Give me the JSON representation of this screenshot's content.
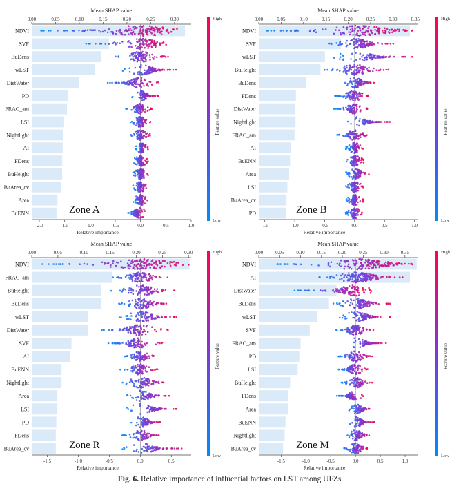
{
  "caption": {
    "label": "Fig. 6.",
    "text": "Relative importance of influential factors on LST among UFZs."
  },
  "chart_data": [
    {
      "type": "bar",
      "title": "Zone A",
      "top_axis_label": "Mean SHAP value",
      "bottom_axis_label": "Relative importance",
      "colorbar_label": "Feature value",
      "colorbar_high": "High",
      "colorbar_low": "Low",
      "top_ticks": [
        "0.00",
        "0.05",
        "0.10",
        "0.15",
        "0.20",
        "0.25",
        "0.30"
      ],
      "top_xlim": [
        0,
        0.335
      ],
      "bottom_ticks": [
        "-2.0",
        "-1.5",
        "-1.0",
        "-0.5",
        "0.0",
        "0.5",
        "1.0"
      ],
      "bottom_xlim": [
        -2.15,
        1.0
      ],
      "categories": [
        "NDVI",
        "SVF",
        "BuDens",
        "wLST",
        "DistWater",
        "PD",
        "FRAC_am",
        "LSI",
        "Nightlight",
        "AI",
        "FDens",
        "BuHeight",
        "BuArea_cv",
        "Area",
        "BuENN"
      ],
      "values": [
        0.322,
        0.162,
        0.145,
        0.133,
        0.1,
        0.076,
        0.074,
        0.068,
        0.066,
        0.065,
        0.064,
        0.064,
        0.062,
        0.054,
        0.052
      ],
      "beeswarm_range": [
        [
          -2.0,
          0.9
        ],
        [
          -1.1,
          0.6
        ],
        [
          -0.6,
          0.6
        ],
        [
          -0.4,
          0.75
        ],
        [
          -0.65,
          0.35
        ],
        [
          -0.2,
          0.35
        ],
        [
          -0.3,
          0.25
        ],
        [
          -0.2,
          0.2
        ],
        [
          -0.2,
          0.2
        ],
        [
          -0.1,
          0.15
        ],
        [
          -0.15,
          0.15
        ],
        [
          -0.15,
          0.15
        ],
        [
          -0.15,
          0.15
        ],
        [
          -0.15,
          0.15
        ],
        [
          -0.25,
          0.1
        ]
      ]
    },
    {
      "type": "bar",
      "title": "Zone B",
      "top_axis_label": "Mean SHAP value",
      "bottom_axis_label": "Relative importance",
      "colorbar_label": "Feature value",
      "colorbar_high": "High",
      "colorbar_low": "Low",
      "top_ticks": [
        "0.00",
        "0.05",
        "0.10",
        "0.15",
        "0.20",
        "0.25",
        "0.30",
        "0.35"
      ],
      "top_xlim": [
        0,
        0.355
      ],
      "bottom_ticks": [
        "-1.5",
        "-1.0",
        "-0.5",
        "0.0",
        "0.5",
        "1.0"
      ],
      "bottom_xlim": [
        -1.6,
        1.05
      ],
      "categories": [
        "NDVI",
        "SVF",
        "wLST",
        "BuHeight",
        "BuDens",
        "FDens",
        "DistWater",
        "Nightlight",
        "FRAC_am",
        "AI",
        "BuENN",
        "Area",
        "LSI",
        "BuArea_cv",
        "PD"
      ],
      "values": [
        0.338,
        0.184,
        0.148,
        0.138,
        0.105,
        0.083,
        0.082,
        0.082,
        0.08,
        0.071,
        0.07,
        0.068,
        0.064,
        0.062,
        0.061
      ],
      "beeswarm_range": [
        [
          -1.5,
          1.0
        ],
        [
          -0.45,
          0.65
        ],
        [
          -0.4,
          1.05
        ],
        [
          -0.55,
          0.6
        ],
        [
          -0.2,
          0.35
        ],
        [
          -0.35,
          0.3
        ],
        [
          -0.35,
          0.25
        ],
        [
          -0.15,
          0.65
        ],
        [
          -0.3,
          0.25
        ],
        [
          -0.15,
          0.15
        ],
        [
          -0.15,
          0.15
        ],
        [
          -0.15,
          0.25
        ],
        [
          -0.15,
          0.15
        ],
        [
          -0.15,
          0.15
        ],
        [
          -0.15,
          0.15
        ]
      ]
    },
    {
      "type": "bar",
      "title": "Zone R",
      "top_axis_label": "Mean SHAP value",
      "bottom_axis_label": "Relative importance",
      "colorbar_label": "Feature value",
      "colorbar_high": "High",
      "colorbar_low": "Low",
      "top_ticks": [
        "0.00",
        "0.05",
        "0.10",
        "0.15",
        "0.20",
        "0.25",
        "0.30"
      ],
      "top_xlim": [
        0,
        0.305
      ],
      "bottom_ticks": [
        "-1.5",
        "-1.0",
        "-0.5",
        "0.0",
        "0.5"
      ],
      "bottom_xlim": [
        -1.75,
        0.82
      ],
      "categories": [
        "NDVI",
        "FRAC_am",
        "BuHeight",
        "BuDens",
        "wLST",
        "DistWater",
        "SVF",
        "AI",
        "BuENN",
        "Nightlight",
        "Area",
        "LSI",
        "PD",
        "FDens",
        "BuArea_cv"
      ],
      "values": [
        0.302,
        0.154,
        0.133,
        0.132,
        0.108,
        0.107,
        0.076,
        0.074,
        0.057,
        0.057,
        0.049,
        0.049,
        0.047,
        0.046,
        0.046
      ],
      "beeswarm_range": [
        [
          -1.65,
          0.8
        ],
        [
          -0.45,
          0.45
        ],
        [
          -0.5,
          0.6
        ],
        [
          -0.35,
          0.5
        ],
        [
          -0.35,
          0.6
        ],
        [
          -0.65,
          0.45
        ],
        [
          -0.55,
          0.4
        ],
        [
          -0.3,
          0.3
        ],
        [
          -0.35,
          0.3
        ],
        [
          -0.35,
          0.5
        ],
        [
          -0.25,
          0.5
        ],
        [
          -0.25,
          0.65
        ],
        [
          -0.15,
          0.35
        ],
        [
          -0.3,
          0.35
        ],
        [
          -0.3,
          0.7
        ]
      ]
    },
    {
      "type": "bar",
      "title": "Zone M",
      "top_axis_label": "Mean SHAP value",
      "bottom_axis_label": "Relative importance",
      "colorbar_label": "Feature value",
      "colorbar_high": "High",
      "colorbar_low": "Low",
      "top_ticks": [
        "0.00",
        "0.05",
        "0.10",
        "0.15",
        "0.20",
        "0.25",
        "0.30",
        "0.35"
      ],
      "top_xlim": [
        0,
        0.38
      ],
      "bottom_ticks": [
        "-1.5",
        "-1.0",
        "-0.5",
        "0.0",
        "0.5",
        "1.0"
      ],
      "bottom_xlim": [
        -1.95,
        1.25
      ],
      "categories": [
        "NDVI",
        "AI",
        "DistWater",
        "BuDens",
        "wLST",
        "SVF",
        "FRAC_am",
        "PD",
        "LSI",
        "BuHeight",
        "FDens",
        "Area",
        "BuENN",
        "Nightlight",
        "BuArea_cv"
      ],
      "values": [
        0.378,
        0.362,
        0.186,
        0.168,
        0.14,
        0.122,
        0.1,
        0.097,
        0.093,
        0.075,
        0.071,
        0.07,
        0.064,
        0.062,
        0.058
      ],
      "beeswarm_range": [
        [
          -1.65,
          1.15
        ],
        [
          -0.75,
          1.0
        ],
        [
          -1.25,
          0.35
        ],
        [
          -0.45,
          0.75
        ],
        [
          -0.35,
          0.7
        ],
        [
          -0.4,
          0.4
        ],
        [
          -0.2,
          0.65
        ],
        [
          -0.35,
          0.35
        ],
        [
          -0.35,
          0.25
        ],
        [
          -0.3,
          0.35
        ],
        [
          -0.4,
          0.2
        ],
        [
          -0.15,
          0.35
        ],
        [
          -0.2,
          0.4
        ],
        [
          -0.2,
          0.3
        ],
        [
          -0.25,
          0.3
        ]
      ]
    }
  ]
}
